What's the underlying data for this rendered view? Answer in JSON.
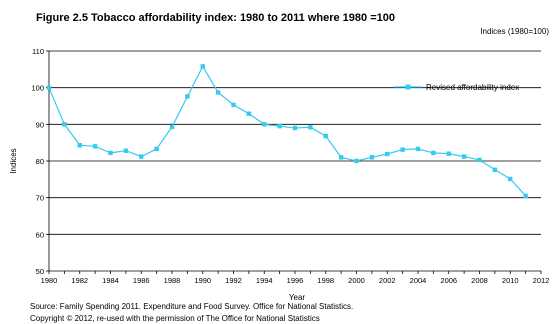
{
  "title": "Figure 2.5 Tobacco affordability index:  1980 to 2011 where 1980 =100",
  "units_note": "Indices (1980=100)",
  "source_line1": "Source: Family Spending 2011. Expenditure and Food Survey. Office for National Statistics.",
  "source_line2": "Copyright © 2012, re-used with the permission of The Office for National Statistics",
  "colors": {
    "series": "#33ccee",
    "axis": "#000000"
  },
  "chart_data": {
    "type": "line",
    "xlabel": "Year",
    "ylabel": "Indices",
    "xlim": [
      1980,
      2012
    ],
    "ylim": [
      50,
      110
    ],
    "x_ticks": [
      1980,
      1982,
      1984,
      1986,
      1988,
      1990,
      1992,
      1994,
      1996,
      1998,
      2000,
      2002,
      2004,
      2006,
      2008,
      2010,
      2012
    ],
    "y_ticks": [
      50,
      60,
      70,
      80,
      90,
      100,
      110
    ],
    "grid": "horizontal",
    "legend_position": "top-right",
    "series": [
      {
        "name": "Revised affordability index",
        "x": [
          1980,
          1981,
          1982,
          1983,
          1984,
          1985,
          1986,
          1987,
          1988,
          1989,
          1990,
          1991,
          1992,
          1993,
          1994,
          1995,
          1996,
          1997,
          1998,
          1999,
          2000,
          2001,
          2002,
          2003,
          2004,
          2005,
          2006,
          2007,
          2008,
          2009,
          2010,
          2011
        ],
        "values": [
          100,
          90,
          84.3,
          84,
          82.2,
          82.8,
          81.2,
          83.3,
          89.3,
          97.6,
          105.8,
          98.7,
          95.3,
          92.9,
          90,
          89.5,
          89,
          89.2,
          86.8,
          81,
          80,
          81,
          81.9,
          83.1,
          83.3,
          82.2,
          82,
          81.2,
          80.3,
          77.6,
          75.1,
          70.5
        ]
      }
    ]
  }
}
